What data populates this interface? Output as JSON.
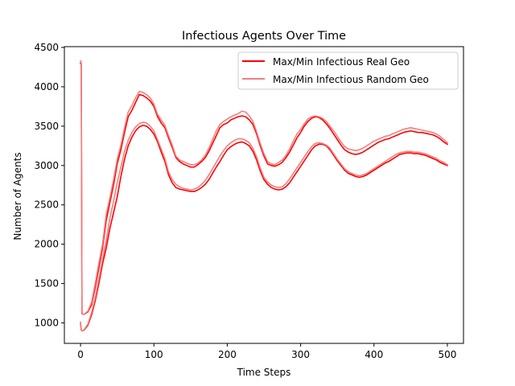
{
  "chart_data": {
    "type": "line",
    "title": "Infectious Agents Over Time",
    "xlabel": "Time Steps",
    "ylabel": "Number of Agents",
    "xlim": [
      -22,
      522
    ],
    "ylim": [
      740,
      4510
    ],
    "xticks": [
      0,
      100,
      200,
      300,
      400,
      500
    ],
    "yticks": [
      1000,
      1500,
      2000,
      2500,
      3000,
      3500,
      4000,
      4500
    ],
    "grid": false,
    "legend_position": "top-right",
    "legend": [
      {
        "label": "Max/Min Infectious Real Geo",
        "color": "#ff0000"
      },
      {
        "label": "Max/Min Infectious Random Geo",
        "color": "#f08080"
      }
    ],
    "series": [
      {
        "name": "Max/Min Infectious Real Geo",
        "role": "max",
        "color": "#ff0000",
        "x": [
          0,
          1,
          2,
          3,
          5,
          10,
          15,
          20,
          25,
          30,
          35,
          40,
          45,
          50,
          55,
          60,
          65,
          70,
          75,
          80,
          85,
          90,
          95,
          100,
          105,
          110,
          115,
          120,
          125,
          130,
          135,
          140,
          145,
          150,
          155,
          160,
          165,
          170,
          175,
          180,
          185,
          190,
          195,
          200,
          205,
          210,
          215,
          220,
          225,
          230,
          235,
          240,
          245,
          250,
          255,
          260,
          265,
          270,
          275,
          280,
          285,
          290,
          295,
          300,
          305,
          310,
          315,
          320,
          325,
          330,
          335,
          340,
          345,
          350,
          355,
          360,
          365,
          370,
          375,
          380,
          385,
          390,
          395,
          400,
          405,
          410,
          415,
          420,
          425,
          430,
          435,
          440,
          445,
          450,
          455,
          460,
          465,
          470,
          475,
          480,
          485,
          490,
          495,
          500
        ],
        "y": [
          4300,
          4280,
          1120,
          1110,
          1110,
          1140,
          1230,
          1450,
          1700,
          1950,
          2300,
          2530,
          2750,
          3020,
          3200,
          3420,
          3620,
          3700,
          3800,
          3900,
          3890,
          3860,
          3820,
          3750,
          3620,
          3540,
          3480,
          3350,
          3230,
          3100,
          3050,
          3020,
          3000,
          2980,
          2980,
          3010,
          3050,
          3100,
          3180,
          3280,
          3380,
          3480,
          3520,
          3540,
          3580,
          3600,
          3620,
          3630,
          3620,
          3580,
          3520,
          3400,
          3250,
          3120,
          3020,
          3000,
          2990,
          3010,
          3040,
          3100,
          3170,
          3260,
          3350,
          3420,
          3500,
          3560,
          3600,
          3620,
          3610,
          3580,
          3530,
          3470,
          3400,
          3330,
          3260,
          3200,
          3170,
          3150,
          3140,
          3150,
          3170,
          3200,
          3230,
          3260,
          3290,
          3310,
          3330,
          3340,
          3360,
          3380,
          3400,
          3420,
          3430,
          3440,
          3430,
          3420,
          3420,
          3410,
          3400,
          3390,
          3370,
          3340,
          3300,
          3270
        ]
      },
      {
        "name": "Max/Min Infectious Real Geo",
        "role": "min",
        "color": "#ff0000",
        "x": [
          0,
          1,
          2,
          3,
          5,
          10,
          15,
          20,
          25,
          30,
          35,
          40,
          45,
          50,
          55,
          60,
          65,
          70,
          75,
          80,
          85,
          90,
          95,
          100,
          105,
          110,
          115,
          120,
          125,
          130,
          135,
          140,
          145,
          150,
          155,
          160,
          165,
          170,
          175,
          180,
          185,
          190,
          195,
          200,
          205,
          210,
          215,
          220,
          225,
          230,
          235,
          240,
          245,
          250,
          255,
          260,
          265,
          270,
          275,
          280,
          285,
          290,
          295,
          300,
          305,
          310,
          315,
          320,
          325,
          330,
          335,
          340,
          345,
          350,
          355,
          360,
          365,
          370,
          375,
          380,
          385,
          390,
          395,
          400,
          405,
          410,
          415,
          420,
          425,
          430,
          435,
          440,
          445,
          450,
          455,
          460,
          465,
          470,
          475,
          480,
          485,
          490,
          495,
          500
        ],
        "y": [
          990,
          910,
          900,
          900,
          910,
          970,
          1100,
          1280,
          1500,
          1750,
          1950,
          2200,
          2400,
          2600,
          2860,
          3080,
          3250,
          3360,
          3440,
          3490,
          3510,
          3500,
          3460,
          3400,
          3300,
          3170,
          3050,
          2880,
          2780,
          2720,
          2700,
          2690,
          2680,
          2670,
          2670,
          2690,
          2720,
          2760,
          2820,
          2900,
          2980,
          3050,
          3130,
          3200,
          3240,
          3270,
          3290,
          3300,
          3280,
          3250,
          3180,
          3070,
          2930,
          2820,
          2760,
          2720,
          2700,
          2690,
          2700,
          2730,
          2780,
          2850,
          2920,
          2990,
          3060,
          3130,
          3200,
          3250,
          3270,
          3270,
          3250,
          3200,
          3130,
          3060,
          3000,
          2940,
          2900,
          2880,
          2860,
          2850,
          2860,
          2880,
          2910,
          2940,
          2970,
          3000,
          3030,
          3050,
          3080,
          3110,
          3140,
          3150,
          3160,
          3160,
          3150,
          3150,
          3140,
          3130,
          3110,
          3090,
          3070,
          3040,
          3020,
          3000
        ]
      },
      {
        "name": "Max/Min Infectious Random Geo",
        "role": "max",
        "color": "#f08080",
        "x": [
          0,
          1,
          2,
          3,
          5,
          10,
          15,
          20,
          25,
          30,
          35,
          40,
          45,
          50,
          55,
          60,
          65,
          70,
          75,
          80,
          85,
          90,
          95,
          100,
          105,
          110,
          115,
          120,
          125,
          130,
          135,
          140,
          145,
          150,
          155,
          160,
          165,
          170,
          175,
          180,
          185,
          190,
          195,
          200,
          205,
          210,
          215,
          220,
          225,
          230,
          235,
          240,
          245,
          250,
          255,
          260,
          265,
          270,
          275,
          280,
          285,
          290,
          295,
          300,
          305,
          310,
          315,
          320,
          325,
          330,
          335,
          340,
          345,
          350,
          355,
          360,
          365,
          370,
          375,
          380,
          385,
          390,
          395,
          400,
          405,
          410,
          415,
          420,
          425,
          430,
          435,
          440,
          445,
          450,
          455,
          460,
          465,
          470,
          475,
          480,
          485,
          490,
          495,
          500
        ],
        "y": [
          4330,
          4310,
          1130,
          1110,
          1110,
          1150,
          1260,
          1500,
          1760,
          2000,
          2380,
          2590,
          2820,
          3080,
          3260,
          3480,
          3680,
          3760,
          3860,
          3940,
          3930,
          3900,
          3860,
          3780,
          3650,
          3580,
          3510,
          3380,
          3260,
          3120,
          3070,
          3050,
          3030,
          3010,
          3010,
          3030,
          3070,
          3130,
          3220,
          3330,
          3440,
          3520,
          3560,
          3590,
          3620,
          3640,
          3660,
          3690,
          3680,
          3630,
          3560,
          3430,
          3280,
          3150,
          3050,
          3020,
          3010,
          3040,
          3070,
          3130,
          3210,
          3310,
          3400,
          3460,
          3530,
          3590,
          3620,
          3630,
          3620,
          3600,
          3560,
          3500,
          3440,
          3370,
          3300,
          3240,
          3210,
          3200,
          3190,
          3200,
          3220,
          3250,
          3280,
          3310,
          3330,
          3350,
          3370,
          3380,
          3400,
          3420,
          3440,
          3460,
          3470,
          3480,
          3470,
          3460,
          3450,
          3440,
          3430,
          3420,
          3400,
          3370,
          3330,
          3290
        ]
      },
      {
        "name": "Max/Min Infectious Random Geo",
        "role": "min",
        "color": "#f08080",
        "x": [
          0,
          1,
          2,
          3,
          5,
          10,
          15,
          20,
          25,
          30,
          35,
          40,
          45,
          50,
          55,
          60,
          65,
          70,
          75,
          80,
          85,
          90,
          95,
          100,
          105,
          110,
          115,
          120,
          125,
          130,
          135,
          140,
          145,
          150,
          155,
          160,
          165,
          170,
          175,
          180,
          185,
          190,
          195,
          200,
          205,
          210,
          215,
          220,
          225,
          230,
          235,
          240,
          245,
          250,
          255,
          260,
          265,
          270,
          275,
          280,
          285,
          290,
          295,
          300,
          305,
          310,
          315,
          320,
          325,
          330,
          335,
          340,
          345,
          350,
          355,
          360,
          365,
          370,
          375,
          380,
          385,
          390,
          395,
          400,
          405,
          410,
          415,
          420,
          425,
          430,
          435,
          440,
          445,
          450,
          455,
          460,
          465,
          470,
          475,
          480,
          485,
          490,
          495,
          500
        ],
        "y": [
          1010,
          920,
          900,
          900,
          915,
          985,
          1130,
          1320,
          1560,
          1810,
          2050,
          2330,
          2540,
          2780,
          2980,
          3180,
          3320,
          3420,
          3490,
          3530,
          3550,
          3540,
          3500,
          3440,
          3330,
          3210,
          3090,
          2920,
          2820,
          2760,
          2730,
          2710,
          2700,
          2690,
          2700,
          2720,
          2760,
          2810,
          2880,
          2960,
          3040,
          3120,
          3190,
          3250,
          3290,
          3320,
          3340,
          3340,
          3320,
          3290,
          3220,
          3110,
          2970,
          2850,
          2790,
          2750,
          2730,
          2720,
          2730,
          2770,
          2830,
          2900,
          2970,
          3040,
          3110,
          3180,
          3240,
          3280,
          3290,
          3280,
          3260,
          3220,
          3150,
          3080,
          3020,
          2960,
          2920,
          2900,
          2880,
          2870,
          2880,
          2900,
          2930,
          2960,
          2990,
          3020,
          3050,
          3080,
          3110,
          3140,
          3160,
          3170,
          3180,
          3180,
          3170,
          3170,
          3160,
          3150,
          3130,
          3110,
          3090,
          3060,
          3040,
          3010
        ]
      }
    ]
  }
}
